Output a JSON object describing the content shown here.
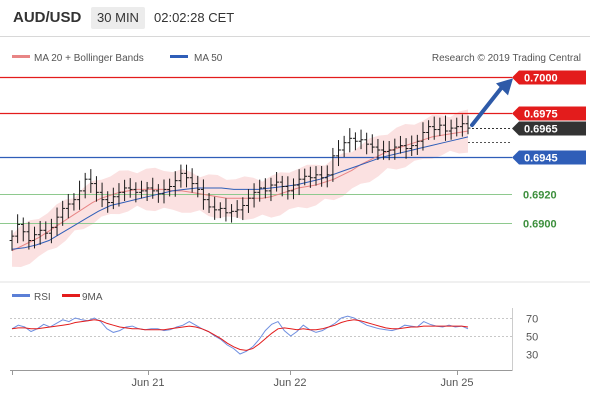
{
  "header": {
    "symbol": "AUD/USD",
    "timeframe": "30 MIN",
    "time": "02:02:28 CET"
  },
  "legend": {
    "ma20_label": "MA 20 + Bollinger Bands",
    "ma50_label": "MA 50",
    "source": "Research © 2019 Trading Central",
    "rsi_label": "RSI",
    "ma9_label": "9MA"
  },
  "colors": {
    "red": "#e31c1c",
    "blue": "#2f5eb8",
    "green": "#8ec98e",
    "dark": "#333333",
    "ma20": "#e88585",
    "band": "#fbe1e1",
    "arrow": "#2e5aa8"
  },
  "chart_data": [
    {
      "type": "line",
      "title": "AUD/USD",
      "x_ticks": [
        "Jun 21",
        "Jun 22",
        "Jun 25"
      ],
      "ylim": [
        0.6875,
        0.7012
      ],
      "levels": [
        {
          "label": "0.7000",
          "value": 0.7,
          "style": "resistance"
        },
        {
          "label": "0.6975",
          "value": 0.6975,
          "style": "resistance"
        },
        {
          "label": "0.6965",
          "value": 0.6965,
          "style": "last"
        },
        {
          "label": "0.6945",
          "value": 0.6945,
          "style": "pivot"
        },
        {
          "label": "0.6920",
          "value": 0.692,
          "style": "support"
        },
        {
          "label": "0.6900",
          "value": 0.69,
          "style": "support"
        }
      ],
      "close": [
        0.6891,
        0.6899,
        0.6894,
        0.6888,
        0.6892,
        0.6895,
        0.6893,
        0.6897,
        0.6904,
        0.691,
        0.6913,
        0.6916,
        0.6922,
        0.693,
        0.6927,
        0.6921,
        0.6916,
        0.6914,
        0.6918,
        0.6921,
        0.6924,
        0.6923,
        0.6921,
        0.6922,
        0.6924,
        0.6922,
        0.692,
        0.6923,
        0.6925,
        0.6929,
        0.6934,
        0.6931,
        0.6927,
        0.6923,
        0.6916,
        0.6911,
        0.6909,
        0.691,
        0.6907,
        0.6908,
        0.6909,
        0.6912,
        0.6917,
        0.6921,
        0.6924,
        0.6922,
        0.6926,
        0.6928,
        0.6925,
        0.6922,
        0.6926,
        0.693,
        0.6932,
        0.6931,
        0.6933,
        0.6931,
        0.6933,
        0.6946,
        0.695,
        0.6955,
        0.6958,
        0.6956,
        0.6957,
        0.6954,
        0.6952,
        0.695,
        0.6949,
        0.695,
        0.6952,
        0.6953,
        0.6951,
        0.6953,
        0.6956,
        0.6962,
        0.6966,
        0.6964,
        0.6967,
        0.6963,
        0.6965,
        0.6966,
        0.6968,
        0.6965
      ],
      "ma20": [
        0.6881,
        0.6884,
        0.6887,
        0.689,
        0.6894,
        0.6898,
        0.6902,
        0.6906,
        0.691,
        0.6914,
        0.6917,
        0.6919,
        0.6921,
        0.6922,
        0.6923,
        0.6923,
        0.6923,
        0.6923,
        0.6922,
        0.6922,
        0.6921,
        0.692,
        0.6919,
        0.6918,
        0.6917,
        0.6917,
        0.6917,
        0.6917,
        0.6917,
        0.6918,
        0.692,
        0.6922,
        0.6924,
        0.6925,
        0.6926,
        0.6928,
        0.693,
        0.6933,
        0.6936,
        0.694,
        0.6943,
        0.6946,
        0.6949,
        0.6951,
        0.6953,
        0.6955,
        0.6957,
        0.6959,
        0.696,
        0.6961,
        0.6962,
        0.6963
      ],
      "ma50": [
        0.6882,
        0.6883,
        0.6885,
        0.6888,
        0.6893,
        0.6898,
        0.6903,
        0.6908,
        0.6912,
        0.6914,
        0.6916,
        0.6918,
        0.692,
        0.6922,
        0.6923,
        0.6924,
        0.6924,
        0.6924,
        0.6923,
        0.6923,
        0.6923,
        0.6924,
        0.6925,
        0.6926,
        0.6928,
        0.693,
        0.6933,
        0.6936,
        0.6939,
        0.6942,
        0.6945,
        0.6947,
        0.6949,
        0.6951,
        0.6953,
        0.6955,
        0.6957,
        0.6959
      ],
      "target": 0.6997
    },
    {
      "type": "line",
      "title": "RSI",
      "y_ticks": [
        70,
        50,
        30
      ],
      "ylim": [
        20,
        80
      ],
      "rsi": [
        58,
        62,
        60,
        55,
        58,
        63,
        60,
        64,
        68,
        66,
        70,
        68,
        67,
        70,
        66,
        58,
        54,
        56,
        60,
        61,
        58,
        57,
        58,
        58,
        56,
        57,
        60,
        62,
        66,
        62,
        58,
        55,
        50,
        46,
        40,
        36,
        30,
        33,
        38,
        46,
        56,
        63,
        66,
        56,
        50,
        55,
        62,
        57,
        54,
        56,
        60,
        64,
        70,
        72,
        70,
        66,
        62,
        60,
        58,
        57,
        56,
        58,
        62,
        61,
        60,
        66,
        63,
        61,
        60,
        62,
        60,
        61,
        58
      ],
      "ma9": [
        58,
        59,
        59,
        58,
        58,
        59,
        60,
        61,
        62,
        63,
        65,
        66,
        67,
        68,
        67,
        64,
        62,
        60,
        59,
        58,
        58,
        57,
        57,
        57,
        57,
        58,
        59,
        60,
        61,
        60,
        58,
        55,
        51,
        47,
        42,
        38,
        35,
        34,
        36,
        41,
        47,
        53,
        58,
        59,
        58,
        57,
        58,
        57,
        57,
        58,
        60,
        62,
        65,
        67,
        68,
        67,
        65,
        63,
        61,
        59,
        58,
        58,
        59,
        60,
        60,
        61,
        61,
        61,
        61,
        61,
        61,
        61,
        60
      ]
    }
  ]
}
